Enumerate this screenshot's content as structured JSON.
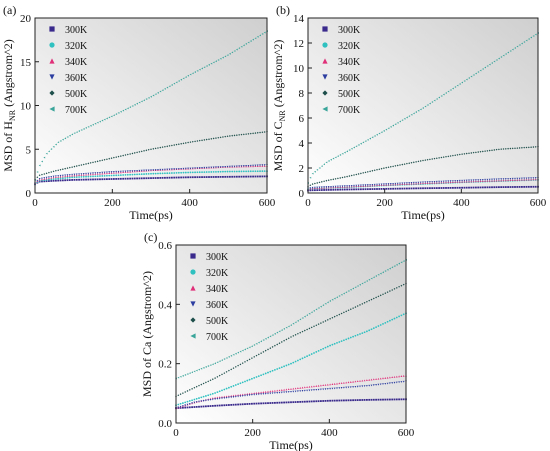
{
  "chart_data": [
    {
      "type": "scatter",
      "panel_label": "(a)",
      "xlabel": "Time(ps)",
      "ylabel": "MSD of H",
      "ylabel_sub": "NR",
      "ylabel_tail": " (Angstrom^2)",
      "xlim": [
        0,
        600
      ],
      "ylim": [
        0,
        20
      ],
      "xticks": [
        0,
        200,
        400,
        600
      ],
      "yticks": [
        0,
        5,
        10,
        15,
        20
      ],
      "legend_position": "top-left",
      "series": [
        {
          "name": "300K",
          "color": "#3a2a8c",
          "marker": "square",
          "points": [
            [
              0,
              1.0
            ],
            [
              10,
              1.3
            ],
            [
              50,
              1.4
            ],
            [
              100,
              1.5
            ],
            [
              200,
              1.6
            ],
            [
              300,
              1.7
            ],
            [
              400,
              1.8
            ],
            [
              500,
              1.85
            ],
            [
              600,
              1.9
            ]
          ]
        },
        {
          "name": "320K",
          "color": "#2fc0c0",
          "marker": "circle",
          "points": [
            [
              0,
              1.0
            ],
            [
              10,
              1.4
            ],
            [
              50,
              1.6
            ],
            [
              100,
              1.8
            ],
            [
              200,
              2.0
            ],
            [
              300,
              2.2
            ],
            [
              400,
              2.35
            ],
            [
              500,
              2.45
            ],
            [
              600,
              2.5
            ]
          ]
        },
        {
          "name": "340K",
          "color": "#e0307a",
          "marker": "triangle-up",
          "points": [
            [
              0,
              1.1
            ],
            [
              10,
              1.5
            ],
            [
              50,
              1.8
            ],
            [
              100,
              2.0
            ],
            [
              200,
              2.3
            ],
            [
              300,
              2.6
            ],
            [
              400,
              2.8
            ],
            [
              500,
              3.0
            ],
            [
              600,
              3.1
            ]
          ]
        },
        {
          "name": "360K",
          "color": "#2c3ea0",
          "marker": "triangle-down",
          "points": [
            [
              0,
              1.1
            ],
            [
              10,
              1.6
            ],
            [
              50,
              1.9
            ],
            [
              100,
              2.1
            ],
            [
              200,
              2.4
            ],
            [
              300,
              2.6
            ],
            [
              400,
              2.8
            ],
            [
              500,
              3.0
            ],
            [
              600,
              3.2
            ]
          ]
        },
        {
          "name": "500K",
          "color": "#1e4f4a",
          "marker": "diamond",
          "points": [
            [
              0,
              1.5
            ],
            [
              10,
              2.0
            ],
            [
              50,
              2.5
            ],
            [
              100,
              3.0
            ],
            [
              200,
              4.0
            ],
            [
              300,
              5.0
            ],
            [
              400,
              5.8
            ],
            [
              500,
              6.5
            ],
            [
              600,
              7.0
            ]
          ]
        },
        {
          "name": "700K",
          "color": "#3aa59a",
          "marker": "triangle-left",
          "points": [
            [
              0,
              1.5
            ],
            [
              10,
              3.0
            ],
            [
              30,
              4.5
            ],
            [
              60,
              5.8
            ],
            [
              100,
              6.8
            ],
            [
              200,
              8.8
            ],
            [
              300,
              11.0
            ],
            [
              400,
              13.5
            ],
            [
              500,
              15.8
            ],
            [
              600,
              18.5
            ]
          ]
        }
      ]
    },
    {
      "type": "scatter",
      "panel_label": "(b)",
      "xlabel": "Time(ps)",
      "ylabel": "MSD of C",
      "ylabel_sub": "NR",
      "ylabel_tail": " (Angstrom^2)",
      "xlim": [
        0,
        600
      ],
      "ylim": [
        0,
        14
      ],
      "xticks": [
        0,
        200,
        400,
        600
      ],
      "yticks": [
        0,
        2,
        4,
        6,
        8,
        10,
        12,
        14
      ],
      "legend_position": "top-left",
      "series": [
        {
          "name": "300K",
          "color": "#3a2a8c",
          "marker": "square",
          "points": [
            [
              0,
              0.2
            ],
            [
              10,
              0.22
            ],
            [
              100,
              0.28
            ],
            [
              200,
              0.33
            ],
            [
              300,
              0.38
            ],
            [
              400,
              0.42
            ],
            [
              500,
              0.47
            ],
            [
              600,
              0.5
            ]
          ]
        },
        {
          "name": "320K",
          "color": "#2fc0c0",
          "marker": "circle",
          "points": [
            [
              0,
              0.3
            ],
            [
              10,
              0.35
            ],
            [
              100,
              0.45
            ],
            [
              200,
              0.6
            ],
            [
              300,
              0.72
            ],
            [
              400,
              0.85
            ],
            [
              500,
              0.95
            ],
            [
              600,
              1.05
            ]
          ]
        },
        {
          "name": "340K",
          "color": "#e0307a",
          "marker": "triangle-up",
          "points": [
            [
              0,
              0.3
            ],
            [
              10,
              0.38
            ],
            [
              100,
              0.5
            ],
            [
              200,
              0.65
            ],
            [
              300,
              0.78
            ],
            [
              400,
              0.9
            ],
            [
              500,
              1.0
            ],
            [
              600,
              1.1
            ]
          ]
        },
        {
          "name": "360K",
          "color": "#2c3ea0",
          "marker": "triangle-down",
          "points": [
            [
              0,
              0.35
            ],
            [
              10,
              0.42
            ],
            [
              100,
              0.55
            ],
            [
              200,
              0.7
            ],
            [
              300,
              0.85
            ],
            [
              400,
              0.98
            ],
            [
              500,
              1.1
            ],
            [
              600,
              1.2
            ]
          ]
        },
        {
          "name": "500K",
          "color": "#1e4f4a",
          "marker": "diamond",
          "points": [
            [
              0,
              0.5
            ],
            [
              10,
              0.7
            ],
            [
              50,
              1.0
            ],
            [
              100,
              1.3
            ],
            [
              200,
              2.0
            ],
            [
              300,
              2.6
            ],
            [
              400,
              3.1
            ],
            [
              500,
              3.5
            ],
            [
              600,
              3.7
            ]
          ]
        },
        {
          "name": "700K",
          "color": "#3aa59a",
          "marker": "triangle-left",
          "points": [
            [
              0,
              0.8
            ],
            [
              10,
              1.5
            ],
            [
              50,
              2.5
            ],
            [
              100,
              3.3
            ],
            [
              200,
              5.0
            ],
            [
              300,
              6.8
            ],
            [
              400,
              8.8
            ],
            [
              500,
              10.8
            ],
            [
              600,
              12.8
            ]
          ]
        }
      ]
    },
    {
      "type": "scatter",
      "panel_label": "(c)",
      "xlabel": "Time(ps)",
      "ylabel": "MSD of Ca",
      "ylabel_sub": "",
      "ylabel_tail": " (Angstrom^2)",
      "xlim": [
        0,
        600
      ],
      "ylim": [
        0,
        0.6
      ],
      "xticks": [
        0,
        200,
        400,
        600
      ],
      "yticks": [
        0.0,
        0.2,
        0.4,
        0.6
      ],
      "legend_position": "top-left",
      "series": [
        {
          "name": "300K",
          "color": "#3a2a8c",
          "marker": "square",
          "points": [
            [
              0,
              0.05
            ],
            [
              100,
              0.058
            ],
            [
              200,
              0.065
            ],
            [
              300,
              0.07
            ],
            [
              400,
              0.075
            ],
            [
              500,
              0.078
            ],
            [
              600,
              0.08
            ]
          ]
        },
        {
          "name": "320K",
          "color": "#2fc0c0",
          "marker": "circle",
          "points": [
            [
              0,
              0.06
            ],
            [
              100,
              0.1
            ],
            [
              200,
              0.15
            ],
            [
              300,
              0.2
            ],
            [
              400,
              0.26
            ],
            [
              500,
              0.31
            ],
            [
              600,
              0.37
            ]
          ]
        },
        {
          "name": "340K",
          "color": "#e0307a",
          "marker": "triangle-up",
          "points": [
            [
              0,
              0.05
            ],
            [
              50,
              0.07
            ],
            [
              100,
              0.085
            ],
            [
              200,
              0.1
            ],
            [
              300,
              0.115
            ],
            [
              400,
              0.13
            ],
            [
              500,
              0.145
            ],
            [
              600,
              0.16
            ]
          ]
        },
        {
          "name": "360K",
          "color": "#2c3ea0",
          "marker": "triangle-down",
          "points": [
            [
              0,
              0.05
            ],
            [
              50,
              0.07
            ],
            [
              100,
              0.08
            ],
            [
              200,
              0.095
            ],
            [
              300,
              0.105
            ],
            [
              400,
              0.115
            ],
            [
              500,
              0.125
            ],
            [
              600,
              0.14
            ]
          ]
        },
        {
          "name": "500K",
          "color": "#1e4f4a",
          "marker": "diamond",
          "points": [
            [
              0,
              0.09
            ],
            [
              100,
              0.15
            ],
            [
              200,
              0.22
            ],
            [
              300,
              0.29
            ],
            [
              400,
              0.35
            ],
            [
              500,
              0.41
            ],
            [
              600,
              0.47
            ]
          ]
        },
        {
          "name": "700K",
          "color": "#3aa59a",
          "marker": "triangle-left",
          "points": [
            [
              0,
              0.15
            ],
            [
              100,
              0.2
            ],
            [
              200,
              0.26
            ],
            [
              300,
              0.33
            ],
            [
              400,
              0.41
            ],
            [
              500,
              0.48
            ],
            [
              600,
              0.55
            ]
          ]
        }
      ]
    }
  ]
}
